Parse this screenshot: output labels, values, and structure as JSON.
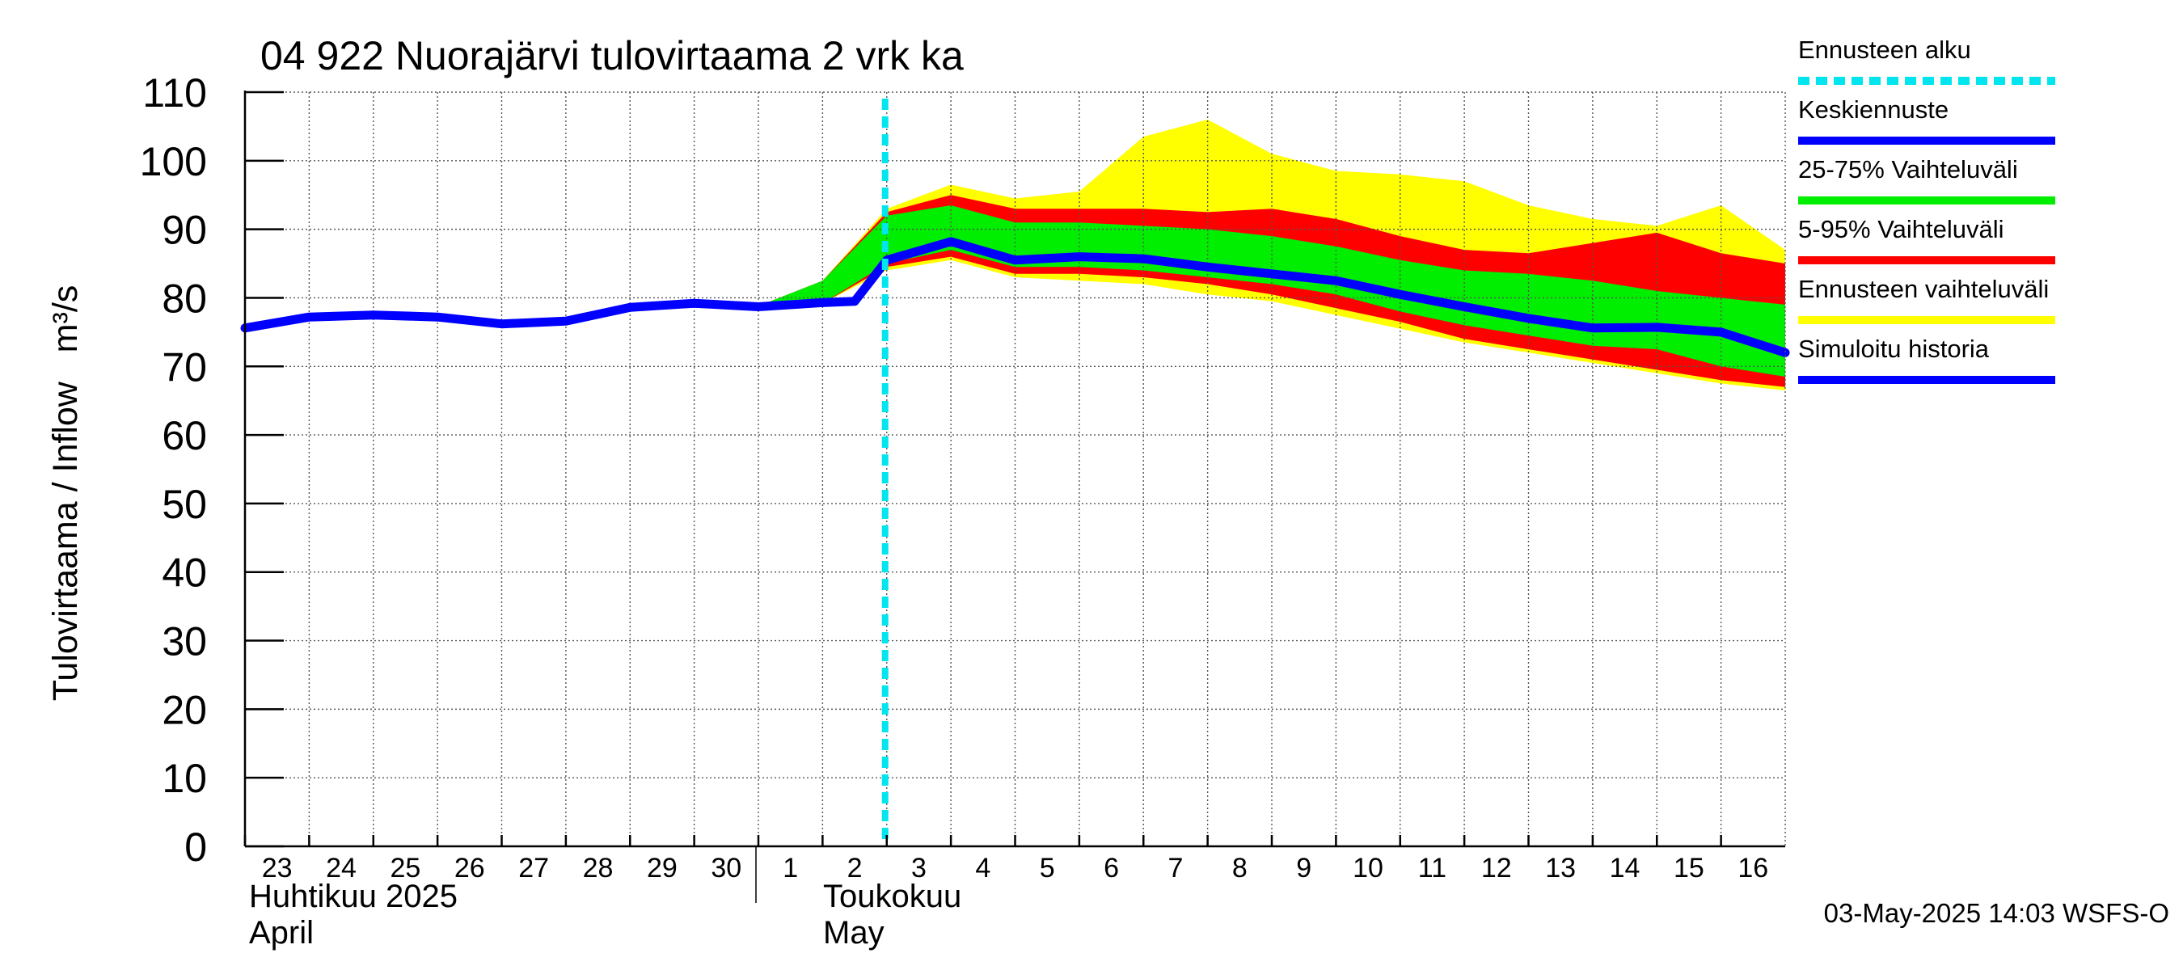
{
  "chart_data": {
    "type": "area",
    "title": "04 922 Nuorajärvi tulovirtaama 2 vrk ka",
    "ylabel": "Tulovirtaama / Inflow   m³/s",
    "ylim": [
      0,
      110
    ],
    "yticks": [
      0,
      10,
      20,
      30,
      40,
      50,
      60,
      70,
      80,
      90,
      100,
      110
    ],
    "x_range_days": [
      0,
      24
    ],
    "day_ticks": [
      {
        "x": 0,
        "label": "23"
      },
      {
        "x": 1,
        "label": "24"
      },
      {
        "x": 2,
        "label": "25"
      },
      {
        "x": 3,
        "label": "26"
      },
      {
        "x": 4,
        "label": "27"
      },
      {
        "x": 5,
        "label": "28"
      },
      {
        "x": 6,
        "label": "29"
      },
      {
        "x": 7,
        "label": "30"
      },
      {
        "x": 8,
        "label": "1"
      },
      {
        "x": 9,
        "label": "2"
      },
      {
        "x": 10,
        "label": "3"
      },
      {
        "x": 11,
        "label": "4"
      },
      {
        "x": 12,
        "label": "5"
      },
      {
        "x": 13,
        "label": "6"
      },
      {
        "x": 14,
        "label": "7"
      },
      {
        "x": 15,
        "label": "8"
      },
      {
        "x": 16,
        "label": "9"
      },
      {
        "x": 17,
        "label": "10"
      },
      {
        "x": 18,
        "label": "11"
      },
      {
        "x": 19,
        "label": "12"
      },
      {
        "x": 20,
        "label": "13"
      },
      {
        "x": 21,
        "label": "14"
      },
      {
        "x": 22,
        "label": "15"
      },
      {
        "x": 23,
        "label": "16"
      }
    ],
    "months": [
      {
        "x": 0,
        "line1": "Huhtikuu  2025",
        "line2": "April"
      },
      {
        "x": 9,
        "line1": "Toukokuu",
        "line2": "May"
      }
    ],
    "month_divider_x": 8,
    "forecast_start_x": 10,
    "grid": true,
    "legend_position": "right",
    "series": [
      {
        "name": "Ennusteen alku",
        "kind": "vline",
        "color": "#00e5ee"
      },
      {
        "name": "Keskiennuste",
        "kind": "line",
        "color": "#0000ff",
        "x": [
          9.5,
          10,
          11,
          12,
          13,
          14,
          15,
          16,
          17,
          18,
          19,
          20,
          21,
          22,
          23,
          24
        ],
        "y": [
          79.5,
          85.5,
          88.2,
          85.5,
          86.0,
          85.7,
          84.5,
          83.5,
          82.5,
          80.5,
          78.7,
          77.0,
          75.6,
          75.7,
          75.0,
          72.0
        ]
      },
      {
        "name": "25-75% Vaihteluväli",
        "kind": "band",
        "color": "#00ee00",
        "x": [
          8,
          9,
          10,
          11,
          12,
          13,
          14,
          15,
          16,
          17,
          18,
          19,
          20,
          21,
          22,
          23,
          24
        ],
        "upper": [
          78.8,
          82.5,
          92.0,
          93.5,
          91.0,
          91.0,
          90.5,
          90.0,
          89.0,
          87.5,
          85.5,
          84.0,
          83.5,
          82.5,
          81.0,
          80.0,
          79.0
        ],
        "lower": [
          78.5,
          79.2,
          85.0,
          87.0,
          84.5,
          84.5,
          84.0,
          83.0,
          82.0,
          80.5,
          78.0,
          76.0,
          74.5,
          73.0,
          72.5,
          70.0,
          68.5
        ]
      },
      {
        "name": "5-95% Vaihteluväli",
        "kind": "band",
        "color": "#ff0000",
        "x": [
          8,
          9,
          10,
          11,
          12,
          13,
          14,
          15,
          16,
          17,
          18,
          19,
          20,
          21,
          22,
          23,
          24
        ],
        "upper": [
          78.8,
          82.5,
          92.5,
          95.0,
          93.0,
          93.0,
          93.0,
          92.5,
          93.0,
          91.5,
          89.0,
          87.0,
          86.5,
          88.0,
          89.5,
          86.5,
          85.0
        ],
        "lower": [
          78.5,
          79.2,
          84.5,
          86.0,
          83.5,
          83.5,
          83.0,
          82.0,
          80.5,
          78.5,
          76.5,
          74.0,
          72.5,
          71.0,
          69.5,
          68.0,
          67.0
        ]
      },
      {
        "name": "Ennusteen vaihteluväli",
        "kind": "band",
        "color": "#ffff00",
        "x": [
          8,
          9,
          10,
          11,
          12,
          13,
          14,
          15,
          16,
          17,
          18,
          19,
          20,
          21,
          22,
          23,
          24
        ],
        "upper": [
          78.8,
          82.5,
          93.0,
          96.5,
          94.5,
          95.5,
          103.5,
          106.0,
          101.0,
          98.5,
          98.0,
          97.0,
          93.5,
          91.5,
          90.5,
          93.5,
          87.0
        ],
        "lower": [
          78.5,
          79.2,
          84.0,
          85.5,
          83.0,
          82.5,
          82.0,
          80.5,
          79.5,
          77.5,
          75.5,
          73.5,
          72.0,
          70.5,
          69.0,
          67.5,
          66.5
        ]
      },
      {
        "name": "Simuloitu historia",
        "kind": "line",
        "color": "#0000ff",
        "x": [
          0,
          1,
          2,
          3,
          4,
          5,
          6,
          7,
          8,
          9,
          9.5
        ],
        "y": [
          75.6,
          77.2,
          77.5,
          77.2,
          76.2,
          76.6,
          78.6,
          79.2,
          78.7,
          79.3,
          79.5
        ]
      }
    ],
    "legend": [
      {
        "label": "Ennusteen alku",
        "color": "#00e5ee",
        "style": "dashed"
      },
      {
        "label": "Keskiennuste",
        "color": "#0000ff",
        "style": "solid"
      },
      {
        "label": "25-75% Vaihteluväli",
        "color": "#00ee00",
        "style": "solid"
      },
      {
        "label": "5-95% Vaihteluväli",
        "color": "#ff0000",
        "style": "solid"
      },
      {
        "label": "Ennusteen vaihteluväli",
        "color": "#ffff00",
        "style": "solid"
      },
      {
        "label": "Simuloitu historia",
        "color": "#0000ff",
        "style": "solid"
      }
    ],
    "timestamp": "03-May-2025 14:03 WSFS-O"
  }
}
